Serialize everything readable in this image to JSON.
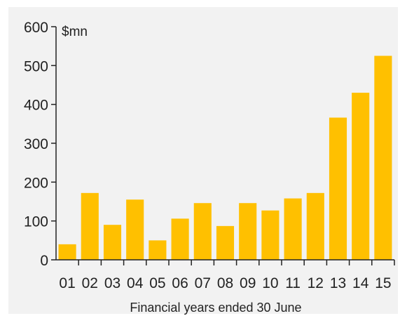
{
  "chart_data": {
    "type": "bar",
    "unit_label": "$mn",
    "xlabel": "Financial years ended 30 June",
    "ylabel": "",
    "categories": [
      "01",
      "02",
      "03",
      "04",
      "05",
      "06",
      "07",
      "08",
      "09",
      "10",
      "11",
      "12",
      "13",
      "14",
      "15"
    ],
    "values": [
      40,
      172,
      90,
      155,
      50,
      106,
      146,
      87,
      146,
      127,
      158,
      172,
      366,
      430,
      525
    ],
    "ylim": [
      0,
      600
    ],
    "yticks": [
      0,
      100,
      200,
      300,
      400,
      500,
      600
    ],
    "bar_color": "#ffc000",
    "background_color": "#f2f2f2",
    "grid": false
  }
}
